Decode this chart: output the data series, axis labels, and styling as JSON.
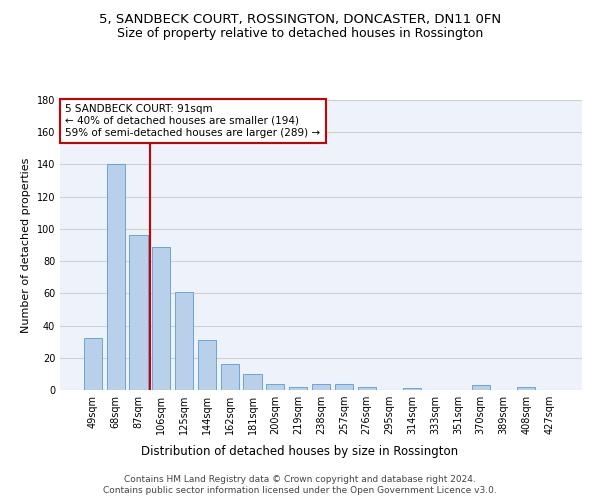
{
  "title": "5, SANDBECK COURT, ROSSINGTON, DONCASTER, DN11 0FN",
  "subtitle": "Size of property relative to detached houses in Rossington",
  "xlabel": "Distribution of detached houses by size in Rossington",
  "ylabel": "Number of detached properties",
  "categories": [
    "49sqm",
    "68sqm",
    "87sqm",
    "106sqm",
    "125sqm",
    "144sqm",
    "162sqm",
    "181sqm",
    "200sqm",
    "219sqm",
    "238sqm",
    "257sqm",
    "276sqm",
    "295sqm",
    "314sqm",
    "333sqm",
    "351sqm",
    "370sqm",
    "389sqm",
    "408sqm",
    "427sqm"
  ],
  "values": [
    32,
    140,
    96,
    89,
    61,
    31,
    16,
    10,
    4,
    2,
    4,
    4,
    2,
    0,
    1,
    0,
    0,
    3,
    0,
    2,
    0
  ],
  "bar_color": "#b8d0ea",
  "bar_edge_color": "#5b9bd5",
  "vline_x": 2.5,
  "vline_color": "#cc0000",
  "annotation_text": "5 SANDBECK COURT: 91sqm\n← 40% of detached houses are smaller (194)\n59% of semi-detached houses are larger (289) →",
  "annotation_box_color": "#ffffff",
  "annotation_border_color": "#cc0000",
  "ylim": [
    0,
    180
  ],
  "yticks": [
    0,
    20,
    40,
    60,
    80,
    100,
    120,
    140,
    160,
    180
  ],
  "grid_color": "#d0d0d0",
  "background_color": "#eef2fa",
  "footer_line1": "Contains HM Land Registry data © Crown copyright and database right 2024.",
  "footer_line2": "Contains public sector information licensed under the Open Government Licence v3.0.",
  "title_fontsize": 9.5,
  "subtitle_fontsize": 9,
  "xlabel_fontsize": 8.5,
  "ylabel_fontsize": 8,
  "tick_fontsize": 7,
  "annotation_fontsize": 7.5,
  "footer_fontsize": 6.5
}
